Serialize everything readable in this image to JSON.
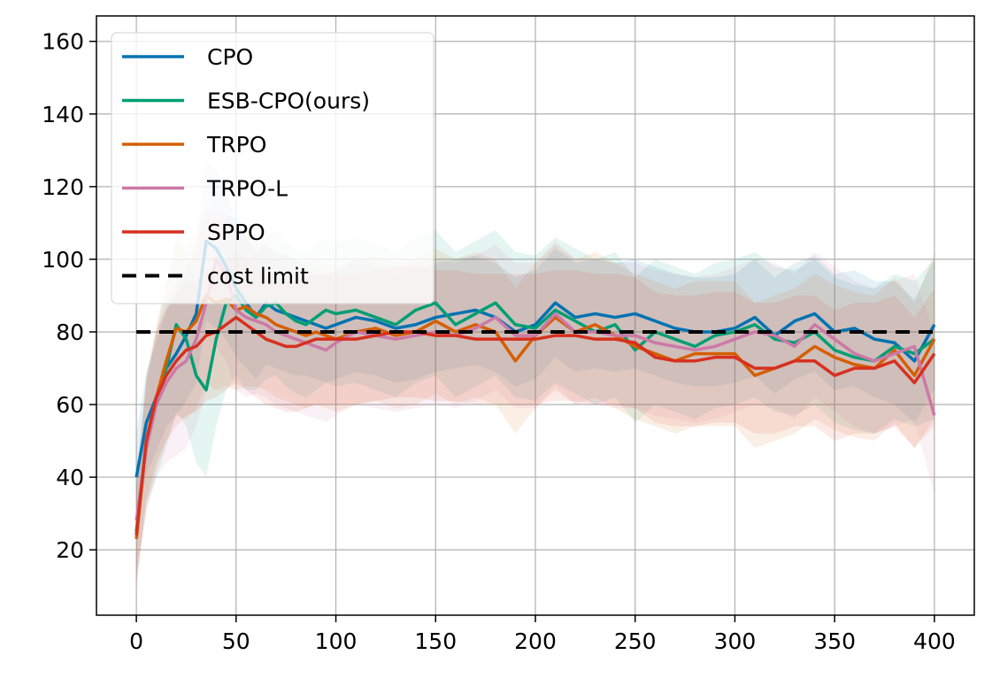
{
  "chart_data": {
    "type": "line",
    "title": "",
    "xlabel": "",
    "ylabel": "",
    "xlim": [
      -20,
      420
    ],
    "ylim": [
      2,
      167
    ],
    "xticks": [
      0,
      50,
      100,
      150,
      200,
      250,
      300,
      350,
      400
    ],
    "yticks": [
      20,
      40,
      60,
      80,
      100,
      120,
      140,
      160
    ],
    "grid": true,
    "legend_position": "top-left",
    "series": [
      {
        "name": "CPO",
        "color": "#0072b2",
        "x": [
          0,
          5,
          10,
          15,
          20,
          25,
          30,
          35,
          40,
          45,
          50,
          55,
          60,
          65,
          70,
          75,
          80,
          85,
          90,
          95,
          100,
          110,
          120,
          130,
          140,
          150,
          160,
          170,
          180,
          190,
          200,
          210,
          220,
          230,
          240,
          250,
          260,
          270,
          280,
          290,
          300,
          310,
          320,
          330,
          340,
          350,
          360,
          370,
          380,
          390,
          400
        ],
        "y": [
          40,
          55,
          62,
          70,
          74,
          79,
          85,
          105,
          103,
          98,
          92,
          88,
          84,
          88,
          86,
          85,
          84,
          83,
          82,
          81,
          82,
          84,
          83,
          81,
          82,
          84,
          85,
          86,
          84,
          80,
          82,
          88,
          84,
          85,
          84,
          85,
          83,
          81,
          80,
          80,
          81,
          84,
          79,
          83,
          85,
          80,
          81,
          78,
          77,
          72,
          82
        ],
        "band": [
          12,
          14,
          15,
          16,
          17,
          18,
          19,
          22,
          22,
          20,
          19,
          18,
          17,
          17,
          16,
          16,
          16,
          15,
          15,
          15,
          15,
          15,
          15,
          15,
          15,
          15,
          15,
          15,
          15,
          15,
          15,
          15,
          15,
          15,
          15,
          15,
          15,
          15,
          15,
          15,
          15,
          16,
          16,
          16,
          16,
          16,
          16,
          16,
          17,
          17,
          18
        ]
      },
      {
        "name": "ESB-CPO(ours)",
        "color": "#009e73",
        "x": [
          0,
          5,
          10,
          15,
          20,
          25,
          30,
          35,
          40,
          45,
          50,
          55,
          60,
          65,
          70,
          75,
          80,
          85,
          90,
          95,
          100,
          110,
          120,
          130,
          140,
          150,
          160,
          170,
          180,
          190,
          200,
          210,
          220,
          230,
          240,
          250,
          260,
          270,
          280,
          290,
          300,
          310,
          320,
          330,
          340,
          350,
          360,
          370,
          380,
          390,
          400
        ],
        "y": [
          25,
          50,
          60,
          70,
          82,
          78,
          68,
          64,
          78,
          88,
          90,
          86,
          84,
          87,
          88,
          85,
          83,
          82,
          84,
          86,
          85,
          86,
          84,
          82,
          86,
          88,
          82,
          85,
          88,
          82,
          81,
          86,
          83,
          80,
          82,
          75,
          80,
          78,
          76,
          79,
          80,
          82,
          78,
          77,
          80,
          75,
          73,
          72,
          76,
          74,
          78
        ],
        "band": [
          14,
          18,
          20,
          22,
          24,
          24,
          24,
          24,
          24,
          24,
          22,
          22,
          20,
          20,
          20,
          20,
          20,
          20,
          20,
          20,
          20,
          20,
          20,
          20,
          20,
          20,
          20,
          20,
          20,
          20,
          20,
          20,
          20,
          20,
          20,
          20,
          20,
          20,
          20,
          20,
          20,
          20,
          20,
          20,
          20,
          20,
          20,
          20,
          20,
          20,
          22
        ]
      },
      {
        "name": "TRPO",
        "color": "#d55e00",
        "x": [
          0,
          5,
          10,
          15,
          20,
          25,
          30,
          35,
          40,
          45,
          50,
          55,
          60,
          65,
          70,
          75,
          80,
          85,
          90,
          95,
          100,
          110,
          120,
          130,
          140,
          150,
          160,
          170,
          180,
          190,
          200,
          210,
          220,
          230,
          240,
          250,
          260,
          270,
          280,
          290,
          300,
          310,
          320,
          330,
          340,
          350,
          360,
          370,
          380,
          390,
          400
        ],
        "y": [
          23,
          50,
          62,
          72,
          81,
          80,
          83,
          90,
          88,
          89,
          86,
          87,
          85,
          84,
          82,
          81,
          80,
          79,
          80,
          79,
          78,
          80,
          81,
          79,
          80,
          83,
          80,
          82,
          80,
          72,
          79,
          84,
          80,
          82,
          79,
          76,
          74,
          72,
          74,
          74,
          74,
          68,
          70,
          72,
          76,
          73,
          71,
          70,
          75,
          68,
          78
        ],
        "band": [
          14,
          18,
          20,
          22,
          24,
          24,
          24,
          24,
          24,
          24,
          22,
          22,
          20,
          20,
          20,
          20,
          20,
          20,
          20,
          20,
          20,
          20,
          20,
          20,
          20,
          20,
          20,
          20,
          20,
          20,
          20,
          20,
          20,
          20,
          20,
          20,
          20,
          20,
          20,
          20,
          20,
          20,
          20,
          20,
          20,
          20,
          20,
          20,
          20,
          20,
          24
        ]
      },
      {
        "name": "TRPO-L",
        "color": "#cc79a7",
        "x": [
          0,
          5,
          10,
          15,
          20,
          25,
          30,
          35,
          40,
          45,
          50,
          55,
          60,
          65,
          70,
          75,
          80,
          85,
          90,
          95,
          100,
          110,
          120,
          130,
          140,
          150,
          160,
          170,
          180,
          190,
          200,
          210,
          220,
          230,
          240,
          250,
          260,
          270,
          280,
          290,
          300,
          310,
          320,
          330,
          340,
          350,
          360,
          370,
          380,
          390,
          400
        ],
        "y": [
          28,
          48,
          60,
          66,
          70,
          72,
          78,
          88,
          100,
          96,
          86,
          84,
          83,
          82,
          80,
          79,
          78,
          77,
          76,
          75,
          77,
          80,
          79,
          78,
          79,
          80,
          79,
          81,
          84,
          79,
          79,
          85,
          80,
          80,
          79,
          79,
          77,
          76,
          75,
          76,
          78,
          80,
          79,
          76,
          82,
          78,
          74,
          72,
          74,
          76,
          57
        ],
        "band": [
          14,
          18,
          20,
          22,
          24,
          24,
          24,
          24,
          24,
          24,
          22,
          22,
          20,
          20,
          20,
          20,
          20,
          20,
          20,
          20,
          20,
          20,
          20,
          20,
          20,
          20,
          20,
          20,
          20,
          20,
          20,
          20,
          20,
          20,
          20,
          20,
          20,
          20,
          20,
          20,
          20,
          20,
          20,
          20,
          20,
          20,
          20,
          20,
          20,
          20,
          22
        ]
      },
      {
        "name": "SPPO",
        "color": "#d7301f",
        "x": [
          0,
          5,
          10,
          15,
          20,
          25,
          30,
          35,
          40,
          45,
          50,
          55,
          60,
          65,
          70,
          75,
          80,
          85,
          90,
          95,
          100,
          110,
          120,
          130,
          140,
          150,
          160,
          170,
          180,
          190,
          200,
          210,
          220,
          230,
          240,
          250,
          260,
          270,
          280,
          290,
          300,
          310,
          320,
          330,
          340,
          350,
          360,
          370,
          380,
          390,
          400
        ],
        "y": [
          24,
          50,
          62,
          68,
          72,
          75,
          76,
          79,
          80,
          82,
          84,
          82,
          80,
          78,
          77,
          76,
          76,
          77,
          78,
          78,
          78,
          78,
          79,
          80,
          80,
          79,
          79,
          78,
          78,
          78,
          78,
          79,
          79,
          78,
          78,
          77,
          73,
          72,
          72,
          73,
          73,
          70,
          70,
          72,
          72,
          68,
          70,
          70,
          72,
          66,
          74
        ],
        "band": [
          12,
          16,
          18,
          18,
          18,
          18,
          18,
          18,
          18,
          18,
          18,
          18,
          18,
          18,
          18,
          18,
          18,
          18,
          18,
          18,
          18,
          18,
          18,
          18,
          18,
          18,
          18,
          18,
          18,
          18,
          18,
          18,
          18,
          18,
          18,
          18,
          18,
          18,
          18,
          18,
          18,
          18,
          18,
          18,
          18,
          18,
          18,
          18,
          18,
          18,
          18
        ]
      },
      {
        "name": "cost limit",
        "color": "#000000",
        "dashed": true,
        "x": [
          0,
          400
        ],
        "y": [
          80,
          80
        ]
      }
    ]
  }
}
